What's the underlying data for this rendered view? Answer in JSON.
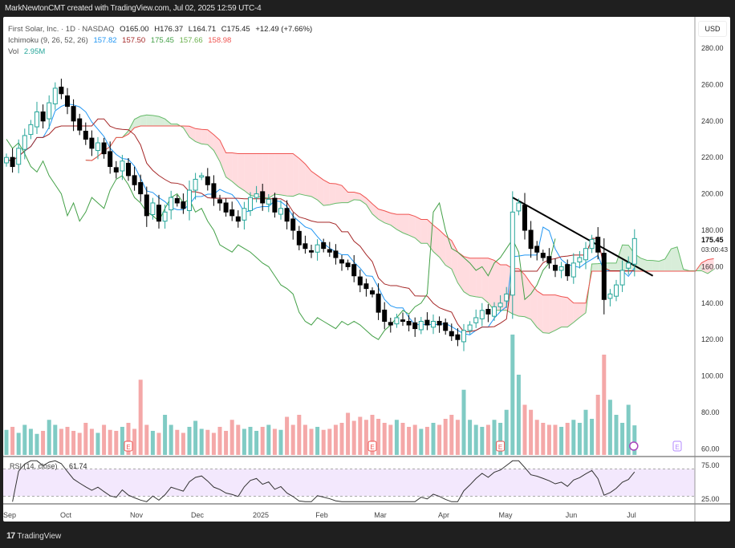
{
  "header": {
    "attribution": "MarkNewtonCMT created with TradingView.com, Jul 02, 2025 12:59 UTC-4"
  },
  "legend": {
    "symbol": "First Solar, Inc. · 1D · NASDAQ",
    "open": "O165.00",
    "high": "H176.37",
    "low": "L164.71",
    "close": "C175.45",
    "change": "+12.49 (+7.66%)",
    "ichimoku_label": "Ichimoku (9, 26, 52, 26)",
    "ichimoku_values": [
      "157.82",
      "157.50",
      "175.45",
      "157.66",
      "158.98"
    ],
    "vol_label": "Vol",
    "vol_value": "2.95M",
    "rsi_label": "RSI (14, close)",
    "rsi_value": "61.74"
  },
  "axis": {
    "currency": "USD",
    "price_ticks": [
      "280.00",
      "260.00",
      "240.00",
      "220.00",
      "200.00",
      "180.00",
      "160.00",
      "140.00",
      "120.00",
      "100.00",
      "80.00",
      "60.00"
    ],
    "last_price": "175.45",
    "countdown": "03:00:43",
    "rsi_ticks": [
      "75.00",
      "25.00"
    ],
    "months": [
      "Sep",
      "Oct",
      "Nov",
      "Dec",
      "2025",
      "Feb",
      "Mar",
      "Apr",
      "May",
      "Jun",
      "Jul"
    ]
  },
  "earnings_marker": "E",
  "footer": {
    "brand": "TradingView"
  },
  "colors": {
    "up": "#26a69a",
    "down": "#000000",
    "tenkan": "#2196f3",
    "kijun": "#a52727",
    "chikou": "#43a047",
    "cloud_bull": "#c8e6c9",
    "cloud_bear": "#ffcdd2",
    "rsi": "#333333",
    "rsi_band": "#f3e8fd",
    "vol_up": "#80cbc4",
    "vol_down": "#f4a8a8",
    "trendline": "#000000"
  },
  "chart_data": {
    "type": "candlestick",
    "closes": [
      220,
      215,
      225,
      232,
      238,
      245,
      240,
      250,
      258,
      255,
      248,
      240,
      235,
      230,
      225,
      228,
      222,
      215,
      212,
      218,
      210,
      205,
      200,
      188,
      195,
      185,
      190,
      198,
      195,
      192,
      202,
      208,
      210,
      205,
      198,
      195,
      190,
      188,
      185,
      192,
      198,
      200,
      195,
      197,
      190,
      192,
      185,
      180,
      172,
      170,
      168,
      172,
      170,
      168,
      165,
      162,
      160,
      155,
      150,
      148,
      145,
      135,
      130,
      128,
      132,
      130,
      128,
      126,
      130,
      128,
      130,
      128,
      125,
      122,
      120,
      125,
      128,
      132,
      136,
      134,
      138,
      140,
      145,
      190,
      195,
      180,
      170,
      168,
      165,
      162,
      158,
      160,
      155,
      162,
      165,
      170,
      175,
      168,
      142,
      145,
      150,
      158,
      162,
      175.45
    ],
    "volumes_m": [
      2.5,
      2.8,
      2.2,
      3,
      2.6,
      2.1,
      2.4,
      3.5,
      3,
      2.6,
      2.8,
      2.4,
      2.2,
      3.2,
      2.6,
      2.2,
      3,
      2.5,
      2.4,
      2.8,
      3.2,
      2.6,
      7.5,
      3,
      2.4,
      2.2,
      4,
      3,
      2.5,
      2.2,
      2.8,
      3.4,
      2.6,
      2.5,
      2.2,
      2.8,
      2.4,
      3.5,
      3,
      2.6,
      2.8,
      2.4,
      2.8,
      3,
      2.6,
      2.5,
      3.8,
      3,
      4,
      3,
      2.6,
      2.8,
      2.5,
      2.6,
      3,
      3.2,
      4.2,
      3.4,
      3.8,
      3.5,
      4,
      3.6,
      3.2,
      3,
      3.5,
      3.2,
      2.8,
      3,
      2.6,
      2.8,
      3.2,
      3,
      3.6,
      4,
      3.5,
      6.5,
      3.5,
      3,
      2.8,
      3,
      3.5,
      3.2,
      4.5,
      12,
      8,
      5,
      4.5,
      3.5,
      3.2,
      3,
      3,
      2.8,
      3.2,
      3.5,
      3.2,
      4.5,
      3.6,
      6,
      10,
      5.5,
      4,
      3.2,
      5,
      2.95
    ],
    "earnings_bar_index": [
      20,
      60,
      81
    ],
    "trendline": {
      "from": {
        "bar": 83,
        "price": 198
      },
      "to": {
        "bar": 106,
        "price": 155
      }
    },
    "ylim": [
      55,
      290
    ],
    "rsi_levels": [
      70,
      30
    ]
  }
}
